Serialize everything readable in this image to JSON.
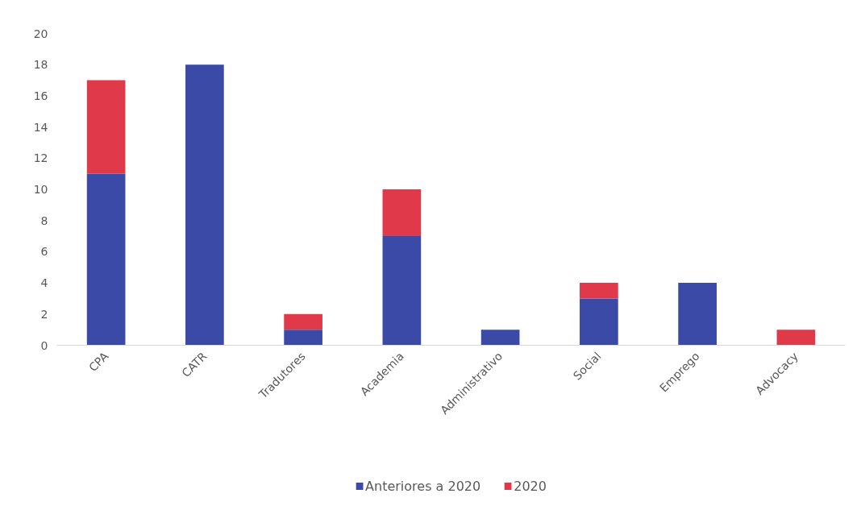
{
  "chart_data": {
    "type": "bar",
    "stacked": true,
    "categories": [
      "CPA",
      "CATR",
      "Tradutores",
      "Academia",
      "Administrativo",
      "Social",
      "Emprego",
      "Advocacy"
    ],
    "series": [
      {
        "name": "Anteriores a 2020",
        "color": "#3a4aa6",
        "values": [
          11,
          18,
          1,
          7,
          1,
          3,
          4,
          0
        ]
      },
      {
        "name": "2020",
        "color": "#e0394a",
        "values": [
          6,
          0,
          1,
          3,
          0,
          1,
          0,
          1
        ]
      }
    ],
    "ylim": [
      0,
      20
    ],
    "yticks": [
      0,
      2,
      4,
      6,
      8,
      10,
      12,
      14,
      16,
      18,
      20
    ],
    "legend": "bottom"
  }
}
